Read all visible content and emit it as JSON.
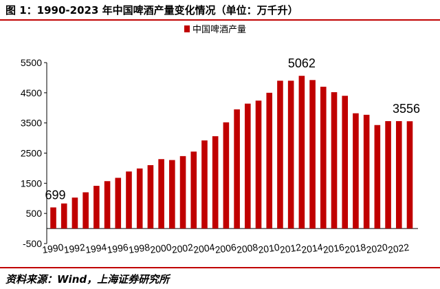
{
  "header": {
    "title": "图 1：1990-2023 年中国啤酒产量变化情况（单位：万千升）"
  },
  "footer": {
    "source": "资料来源：Wind，上海证券研究所"
  },
  "chart_data": {
    "type": "bar",
    "legend": {
      "position": "top-center"
    },
    "series": [
      {
        "name": "中国啤酒产量",
        "color": "#c00000",
        "x": [
          1990,
          1991,
          1992,
          1993,
          1994,
          1995,
          1996,
          1997,
          1998,
          1999,
          2000,
          2001,
          2002,
          2003,
          2004,
          2005,
          2006,
          2007,
          2008,
          2009,
          2010,
          2011,
          2012,
          2013,
          2014,
          2015,
          2016,
          2017,
          2018,
          2019,
          2020,
          2021,
          2022,
          2023
        ],
        "values": [
          699,
          830,
          1025,
          1200,
          1415,
          1570,
          1680,
          1890,
          1990,
          2100,
          2300,
          2270,
          2400,
          2550,
          2920,
          3060,
          3520,
          3950,
          4140,
          4240,
          4500,
          4900,
          4900,
          5062,
          4922,
          4700,
          4520,
          4400,
          3820,
          3770,
          3430,
          3560,
          3560,
          3556
        ]
      }
    ],
    "x_tick_labels": [
      "1990",
      "1992",
      "1994",
      "1996",
      "1998",
      "2000",
      "2002",
      "2004",
      "2006",
      "2008",
      "2010",
      "2012",
      "2014",
      "2016",
      "2018",
      "2020",
      "2022"
    ],
    "y_tick_labels": [
      "-500",
      "500",
      "1500",
      "2500",
      "3500",
      "4500",
      "5500"
    ],
    "ylim": [
      -500,
      5500
    ],
    "grid": false,
    "annotations": [
      {
        "x": 1990,
        "text": "699"
      },
      {
        "x": 2013,
        "text": "5062"
      },
      {
        "x": 2023,
        "text": "3556"
      }
    ]
  }
}
